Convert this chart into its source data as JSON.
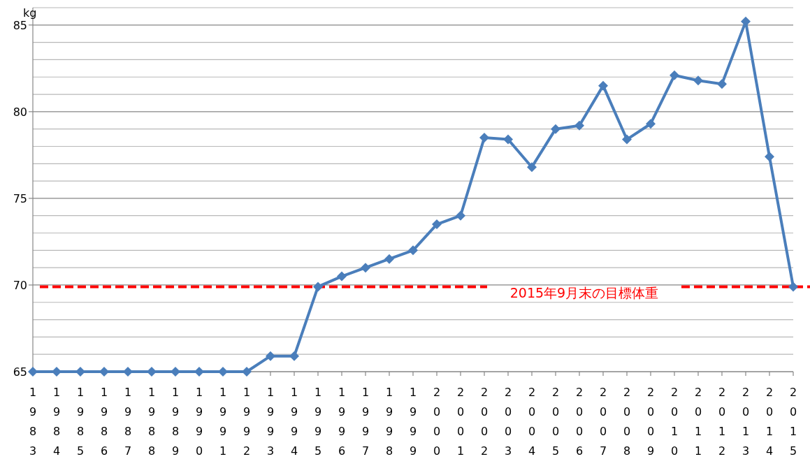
{
  "chart_data": {
    "type": "line",
    "categories": [
      "1983",
      "1984",
      "1985",
      "1986",
      "1987",
      "1988",
      "1989",
      "1990",
      "1991",
      "1992",
      "1993",
      "1994",
      "1995",
      "1996",
      "1997",
      "1998",
      "1999",
      "2000",
      "2001",
      "2002",
      "2003",
      "2004",
      "2005",
      "2006",
      "2007",
      "2008",
      "2009",
      "2010",
      "2011",
      "2012",
      "2013",
      "2014",
      "2015"
    ],
    "series": [
      {
        "color": "#4a7ebb",
        "values": [
          65,
          65,
          65,
          65,
          65,
          65,
          65,
          65,
          65,
          65,
          65.9,
          65.9,
          69.9,
          70.5,
          71.0,
          71.5,
          72.0,
          73.5,
          74.0,
          78.5,
          78.4,
          76.8,
          79.0,
          79.2,
          81.5,
          78.4,
          79.3,
          82.1,
          81.8,
          81.6,
          85.2,
          77.4,
          69.9
        ]
      }
    ],
    "ylabel": "kg",
    "ylim": [
      65,
      86
    ],
    "yticks": [
      65,
      {
        "value": 66,
        "label": null
      },
      {
        "value": 67,
        "label": null
      },
      {
        "value": 68,
        "label": null
      },
      {
        "value": 69,
        "label": null
      },
      70,
      {
        "value": 71,
        "label": null
      },
      {
        "value": 72,
        "label": null
      },
      {
        "value": 73,
        "label": null
      },
      {
        "value": 74,
        "label": null
      },
      75,
      {
        "value": 76,
        "label": null
      },
      {
        "value": 77,
        "label": null
      },
      {
        "value": 78,
        "label": null
      },
      {
        "value": 79,
        "label": null
      },
      80,
      {
        "value": 81,
        "label": null
      },
      {
        "value": 82,
        "label": null
      },
      {
        "value": 83,
        "label": null
      },
      {
        "value": 84,
        "label": null
      },
      85,
      {
        "value": 86,
        "label": null
      }
    ],
    "ref_lines": [
      {
        "axis": "y",
        "value": 69.9,
        "label": "2015年9月末の目標体重",
        "color": "#ff0000",
        "line_style": "dashed"
      }
    ],
    "grid": "y",
    "marker": "diamond",
    "line_style": "solid"
  }
}
